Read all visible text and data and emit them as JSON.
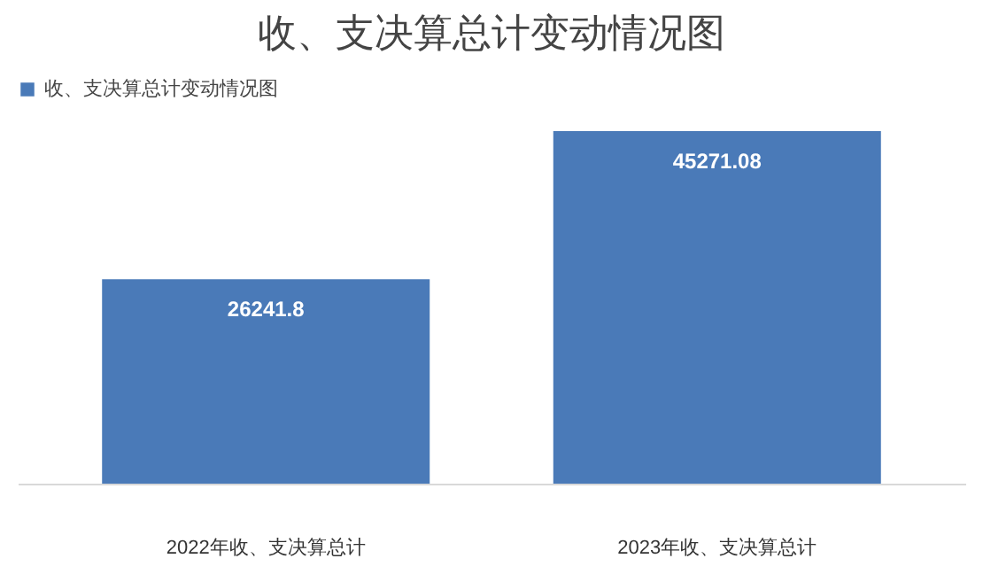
{
  "chart_data": {
    "type": "bar",
    "title": "收、支决算总计变动情况图",
    "categories": [
      "2022年收、支决算总计",
      "2023年收、支决算总计"
    ],
    "series": [
      {
        "name": "收、支决算总计变动情况图",
        "color": "#4a7ab8",
        "values": [
          26241.8,
          45271.08
        ]
      }
    ],
    "data_labels": true,
    "legend": "top",
    "grid": false
  }
}
